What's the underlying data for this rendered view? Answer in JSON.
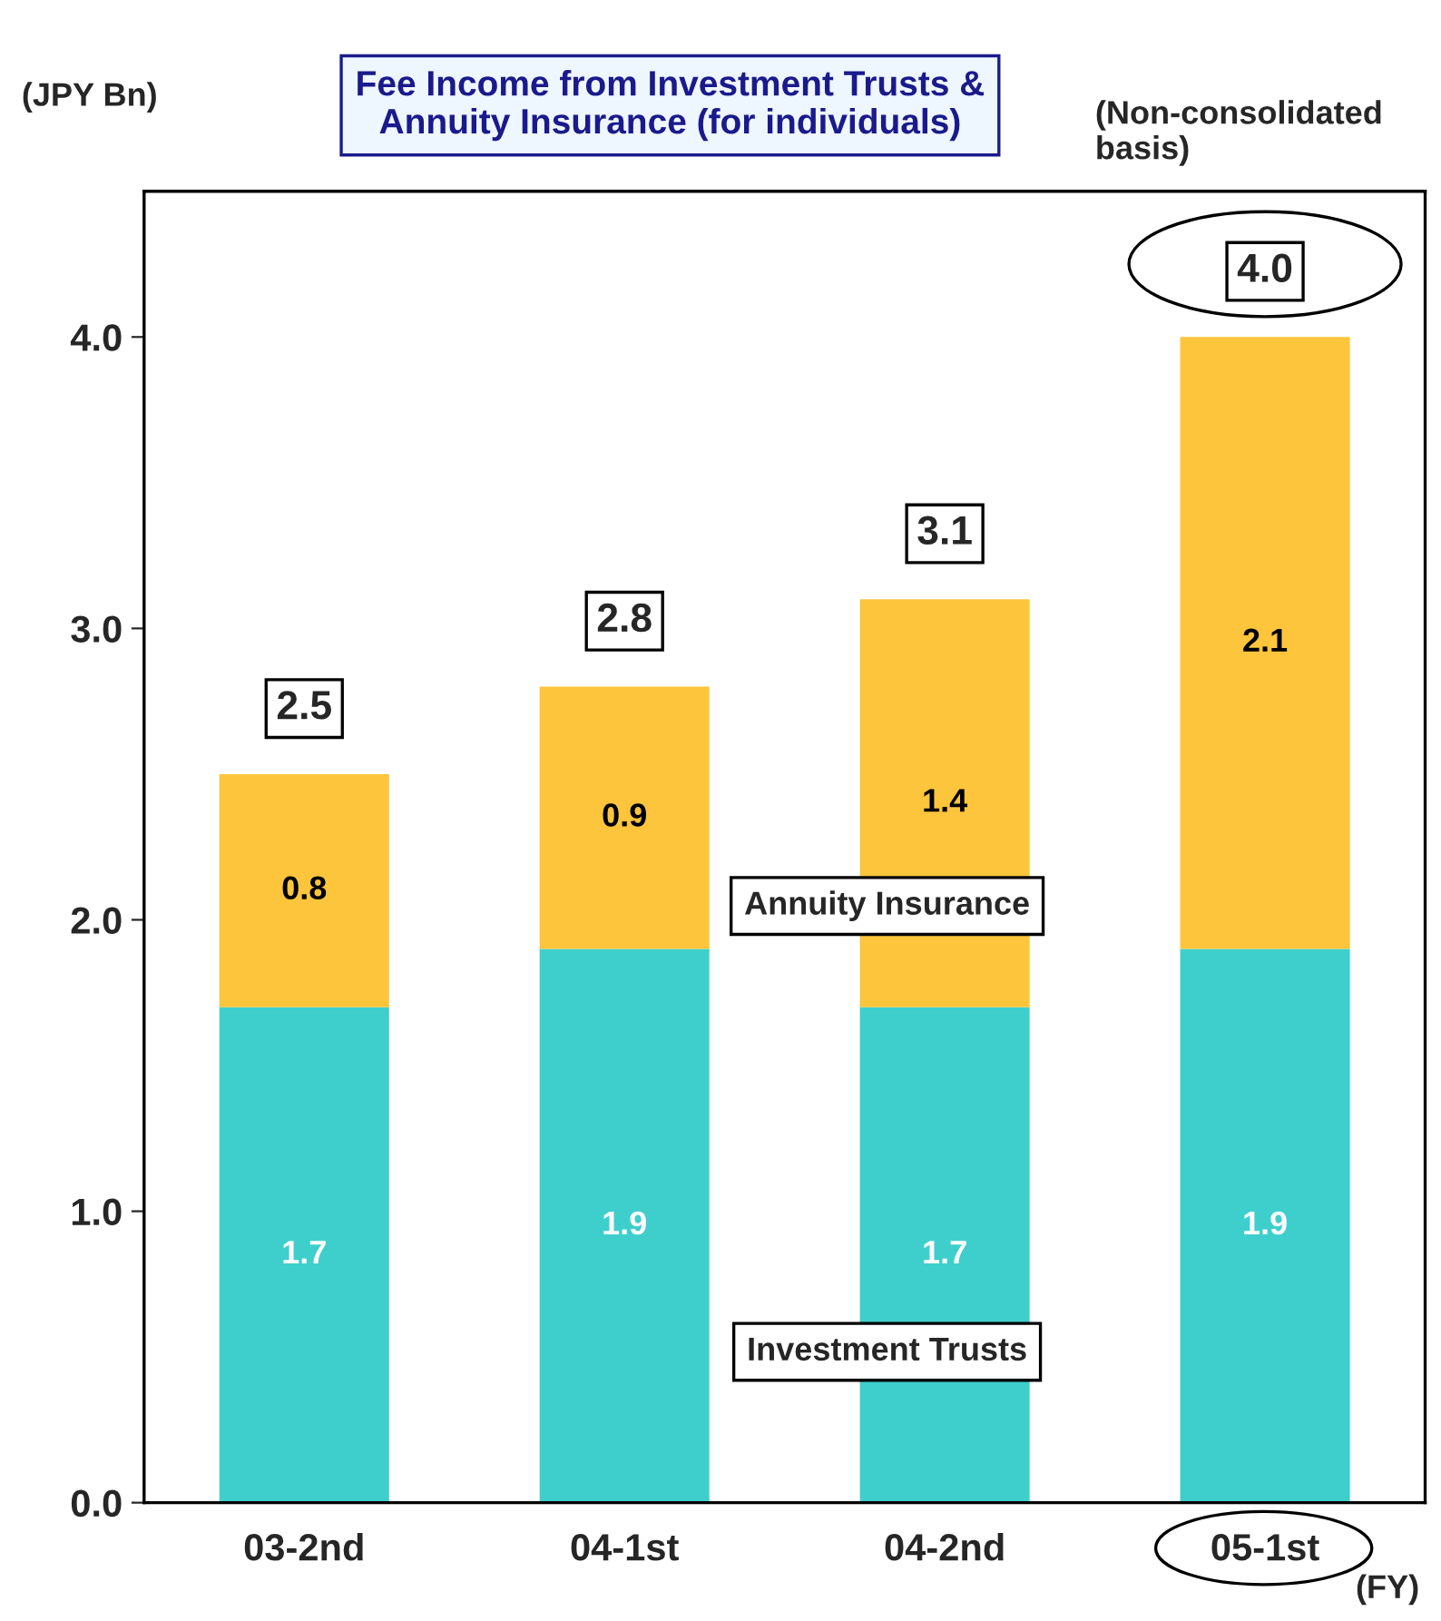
{
  "chart_data": {
    "type": "bar",
    "title": "Fee Income from Investment Trusts &\nAnnuity Insurance (for individuals)",
    "ylabel": "(JPY Bn)",
    "xlabel": "(FY)",
    "annotations": [
      "(Non-consolidated\nbasis)"
    ],
    "categories": [
      "03-2nd",
      "04-1st",
      "04-2nd",
      "05-1st"
    ],
    "stacked": true,
    "series": [
      {
        "name": "Investment Trusts",
        "color": "#3ecfcc",
        "values": [
          1.7,
          1.9,
          1.7,
          1.9
        ]
      },
      {
        "name": "Annuity Insurance",
        "color": "#fcc53c",
        "values": [
          0.8,
          0.9,
          1.4,
          2.1
        ]
      }
    ],
    "data_labels": true,
    "totals": [
      "2.5",
      "2.8",
      "3.1",
      "4.0"
    ],
    "ylim": [
      0,
      4.5
    ],
    "yticks": [
      {
        "value": 0,
        "label": "0.0"
      },
      {
        "value": 1,
        "label": "1.0"
      },
      {
        "value": 2,
        "label": "2.0"
      },
      {
        "value": 3,
        "label": "3.0"
      },
      {
        "value": 4,
        "label": "4.0"
      }
    ],
    "grid": false,
    "legend": false
  }
}
